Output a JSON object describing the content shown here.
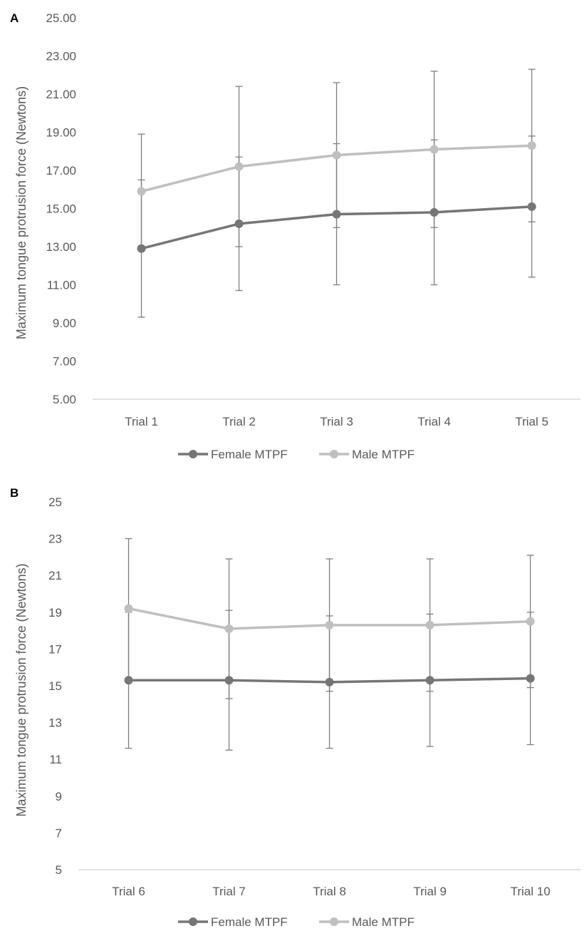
{
  "colors": {
    "female": "#767676",
    "male": "#bfbfbf",
    "errorbar": "#7f7f7f",
    "axis": "#d9d9d9",
    "text": "#595959"
  },
  "chart_data": [
    {
      "type": "line",
      "panel_label": "A",
      "title": "",
      "xlabel": "",
      "ylabel": "Maximum tongue protrusion force (Newtons)",
      "ylim": [
        5,
        25
      ],
      "y_ticks": [
        "5.00",
        "7.00",
        "9.00",
        "11.00",
        "13.00",
        "15.00",
        "17.00",
        "19.00",
        "21.00",
        "23.00",
        "25.00"
      ],
      "categories": [
        "Trial 1",
        "Trial 2",
        "Trial 3",
        "Trial 4",
        "Trial 5"
      ],
      "grid": false,
      "legend_position": "bottom",
      "series": [
        {
          "name": "Female MTPF",
          "values": [
            12.9,
            14.2,
            14.7,
            14.8,
            15.1
          ],
          "error": [
            3.6,
            3.5,
            3.7,
            3.8,
            3.7
          ]
        },
        {
          "name": "Male MTPF",
          "values": [
            15.9,
            17.2,
            17.8,
            18.1,
            18.3
          ],
          "error": [
            3.0,
            4.2,
            3.8,
            4.1,
            4.0
          ]
        }
      ]
    },
    {
      "type": "line",
      "panel_label": "B",
      "title": "",
      "xlabel": "",
      "ylabel": "Maximum tongue protrusion force (Newtons)",
      "ylim": [
        5,
        25
      ],
      "y_ticks": [
        "5",
        "7",
        "9",
        "11",
        "13",
        "15",
        "17",
        "19",
        "21",
        "23",
        "25"
      ],
      "categories": [
        "Trial 6",
        "Trial 7",
        "Trial 8",
        "Trial 9",
        "Trial 10"
      ],
      "grid": false,
      "legend_position": "bottom",
      "series": [
        {
          "name": "Female MTPF",
          "values": [
            15.3,
            15.3,
            15.2,
            15.3,
            15.4
          ],
          "error": [
            3.7,
            3.8,
            3.6,
            3.6,
            3.6
          ]
        },
        {
          "name": "Male MTPF",
          "values": [
            19.2,
            18.1,
            18.3,
            18.3,
            18.5
          ],
          "error": [
            3.8,
            3.8,
            3.6,
            3.6,
            3.6
          ]
        }
      ]
    }
  ]
}
